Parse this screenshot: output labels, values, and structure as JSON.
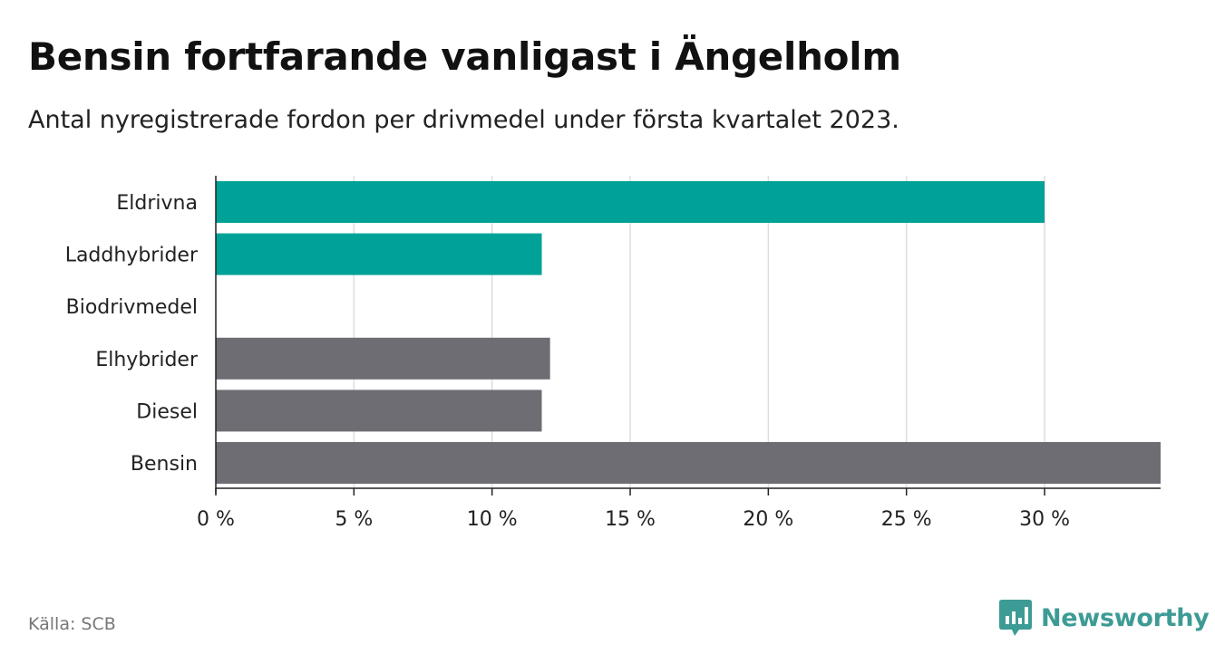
{
  "header": {
    "title": "Bensin fortfarande vanligast i Ängelholm",
    "subtitle": "Antal nyregistrerade fordon per drivmedel under första kvartalet 2023."
  },
  "footer": {
    "source": "Källa: SCB",
    "brand": "Newsworthy",
    "logo_icon": "bar-chart-bubble-icon"
  },
  "colors": {
    "electric": "#00a298",
    "other": "#6e6d74",
    "grid": "#dddddd",
    "axis": "#222222",
    "brand": "#3d9b95"
  },
  "chart_data": {
    "type": "bar",
    "orientation": "horizontal",
    "categories": [
      "Eldrivna",
      "Laddhybrider",
      "Biodrivmedel",
      "Elhybrider",
      "Diesel",
      "Bensin"
    ],
    "values": [
      30.0,
      11.8,
      0,
      12.1,
      11.8,
      34.2
    ],
    "bar_colors": [
      "electric",
      "electric",
      "other",
      "other",
      "other",
      "other"
    ],
    "xlim": [
      0,
      34.2
    ],
    "xticks": [
      0,
      5,
      10,
      15,
      20,
      25,
      30
    ],
    "xtick_labels": [
      "0 %",
      "5 %",
      "10 %",
      "15 %",
      "20 %",
      "25 %",
      "30 %"
    ],
    "grid": true
  }
}
